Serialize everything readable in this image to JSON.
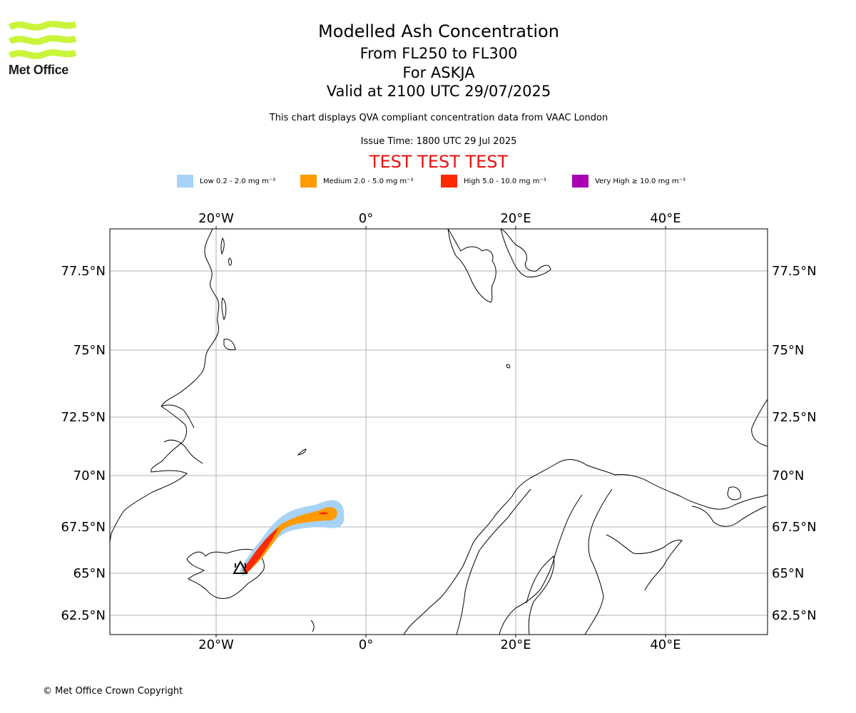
{
  "logo": {
    "text": "Met Office",
    "color": "#c8f53a"
  },
  "title": {
    "main": "Modelled Ash Concentration",
    "levels": "From FL250 to FL300",
    "volcano": "For ASKJA",
    "valid": "Valid at 2100 UTC 29/07/2025"
  },
  "subtitle": "This chart displays QVA compliant concentration data from VAAC London",
  "issue_time": "Issue Time: 1800 UTC 29 Jul 2025",
  "test_banner": "TEST TEST TEST",
  "legend": [
    {
      "label": "Low 0.2 - 2.0 mg m⁻³",
      "color": "#a6d3f7"
    },
    {
      "label": "Medium 2.0 - 5.0 mg m⁻³",
      "color": "#ff9a00"
    },
    {
      "label": "High 5.0 - 10.0 mg m⁻³",
      "color": "#ff2a00"
    },
    {
      "label": "Very High ≥ 10.0 mg m⁻³",
      "color": "#a800b2"
    }
  ],
  "map": {
    "lon_ticks": [
      "20°W",
      "0°",
      "20°E",
      "40°E"
    ],
    "lat_ticks": [
      "77.5°N",
      "75°N",
      "72.5°N",
      "70°N",
      "67.5°N",
      "65°N",
      "62.5°N"
    ],
    "grid": true,
    "source_marker": "volcano-triangle"
  },
  "copyright": "© Met Office Crown Copyright"
}
